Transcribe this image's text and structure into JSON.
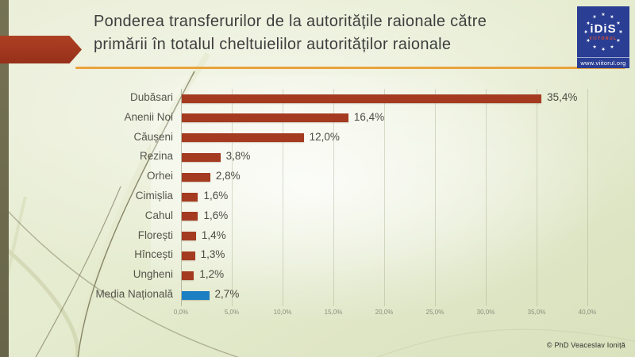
{
  "slide": {
    "title_line1": "Ponderea transferurilor de la autoritățile raionale către",
    "title_line2": "primării în totalul cheltuielilor autorităților raionale",
    "footer": "© PhD Veaceslav Ioniță"
  },
  "logo": {
    "name": "iDiS",
    "subname": "VIITORUL",
    "url": "www.viitorul.org",
    "stars": 12,
    "bg_color": "#2a3e94"
  },
  "chart_data": {
    "type": "bar",
    "orientation": "horizontal",
    "title": "Ponderea transferurilor de la autoritățile raionale către primării în totalul cheltuielilor autorităților raionale",
    "categories": [
      "Dubăsari",
      "Anenii Noi",
      "Căușeni",
      "Rezina",
      "Orhei",
      "Cimișlia",
      "Cahul",
      "Florești",
      "Hîncești",
      "Ungheni",
      "Media Națională"
    ],
    "values": [
      35.4,
      16.4,
      12.0,
      3.8,
      2.8,
      1.6,
      1.6,
      1.4,
      1.3,
      1.2,
      2.7
    ],
    "value_labels": [
      "35,4%",
      "16,4%",
      "12,0%",
      "3,8%",
      "2,8%",
      "1,6%",
      "1,6%",
      "1,4%",
      "1,3%",
      "1,2%",
      "2,7%"
    ],
    "x_ticks": [
      "0,0%",
      "5,0%",
      "10,0%",
      "15,0%",
      "20,0%",
      "25,0%",
      "30,0%",
      "35,0%",
      "40,0%"
    ],
    "xlim": [
      0,
      40
    ],
    "grid": true,
    "bar_color": "#a43b20",
    "highlight_index": 10,
    "highlight_color": "#1d7fc3",
    "accent_gold": "#eaa23c",
    "accent_red": "#a23a1f"
  }
}
